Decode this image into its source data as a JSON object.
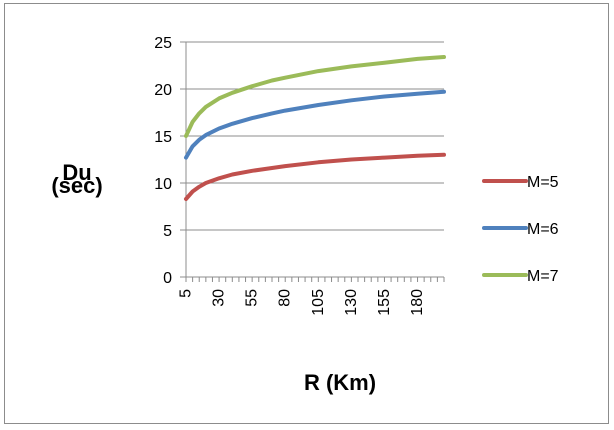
{
  "chart_data": {
    "type": "line",
    "ylabel_lines": [
      "Du",
      "(sec)"
    ],
    "xlabel": "R (Km)",
    "ylim": [
      0,
      25
    ],
    "yticks": [
      0,
      5,
      10,
      15,
      20,
      25
    ],
    "xlim": [
      5,
      200
    ],
    "xtick_labels": [
      "5",
      "30",
      "55",
      "80",
      "105",
      "130",
      "155",
      "180"
    ],
    "xtick_values": [
      5,
      30,
      55,
      80,
      105,
      130,
      155,
      180
    ],
    "grid": "horizontal",
    "legend_position": "right",
    "series": [
      {
        "name": "M=5",
        "color": "#c0504d",
        "x": [
          5,
          10,
          15,
          20,
          30,
          40,
          55,
          70,
          80,
          105,
          130,
          155,
          180,
          200
        ],
        "values": [
          8.3,
          9.1,
          9.6,
          10.0,
          10.5,
          10.9,
          11.3,
          11.6,
          11.8,
          12.2,
          12.5,
          12.7,
          12.9,
          13.0
        ]
      },
      {
        "name": "M=6",
        "color": "#4f81bd",
        "x": [
          5,
          10,
          15,
          20,
          30,
          40,
          55,
          70,
          80,
          105,
          130,
          155,
          180,
          200
        ],
        "values": [
          12.7,
          13.9,
          14.6,
          15.1,
          15.8,
          16.3,
          16.9,
          17.4,
          17.7,
          18.3,
          18.8,
          19.2,
          19.5,
          19.7
        ]
      },
      {
        "name": "M=7",
        "color": "#9bbb59",
        "x": [
          5,
          10,
          15,
          20,
          30,
          40,
          55,
          70,
          80,
          105,
          130,
          155,
          180,
          200
        ],
        "values": [
          15.0,
          16.5,
          17.4,
          18.1,
          19.0,
          19.6,
          20.3,
          20.9,
          21.2,
          21.9,
          22.4,
          22.8,
          23.2,
          23.4
        ]
      }
    ]
  }
}
